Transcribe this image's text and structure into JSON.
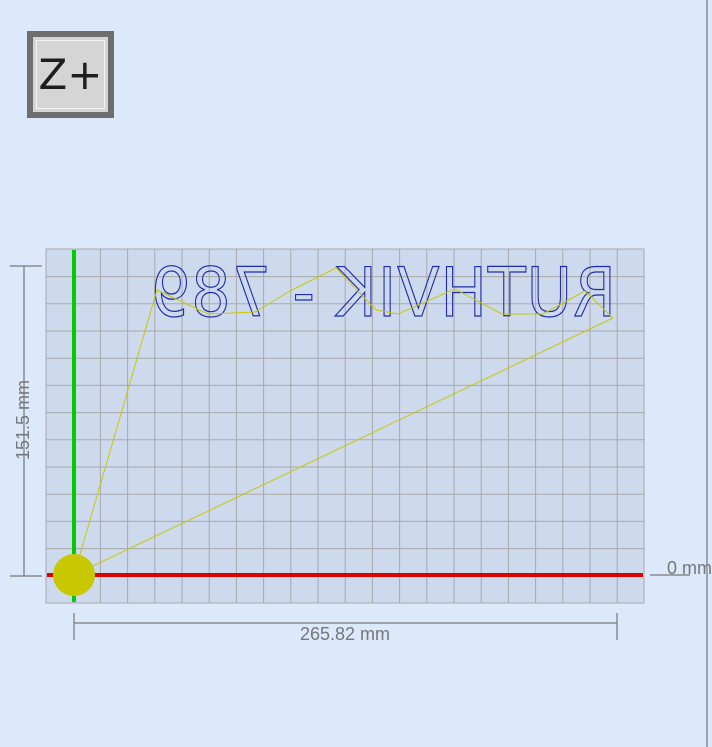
{
  "toolbar": {
    "z_plus_label": "Z+"
  },
  "workspace": {
    "width_dimension": "265.82 mm",
    "height_dimension": "151.5 mm",
    "baseline_label": "0 mm",
    "engraving_text": "RUTHVIK - 789",
    "engraving_mirrored": true,
    "colors": {
      "background": "#dbe9fb",
      "grid_fill": "#cdd9ec",
      "grid_lines": "#a9a9a9",
      "x_axis": "#dd0000",
      "y_axis": "#00cc00",
      "toolpath": "#c8c800",
      "tool_marker": "#c8c800",
      "engraving_outline": "#1f2cab",
      "dimension_lines": "#777777"
    }
  }
}
